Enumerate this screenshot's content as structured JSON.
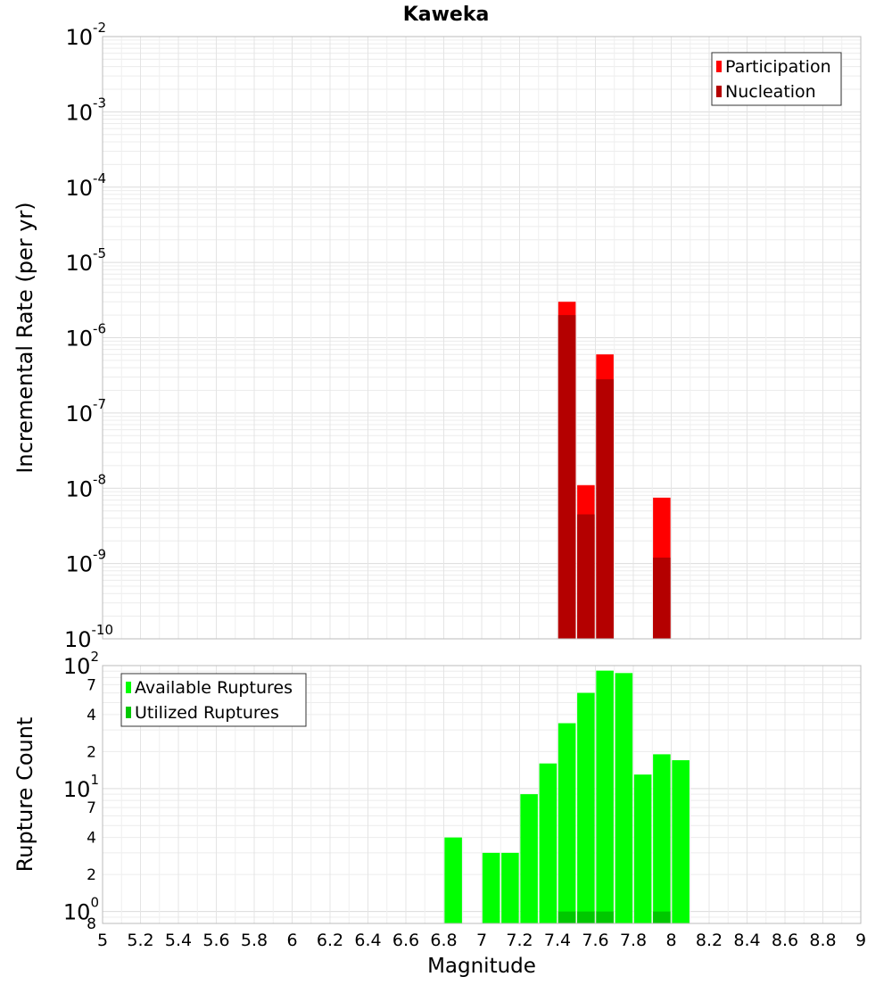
{
  "chart_data": {
    "type": "bar",
    "title": "Kaweka",
    "xlabel": "Magnitude",
    "xlim": [
      5,
      9
    ],
    "x_ticks": [
      "5",
      "5.2",
      "5.4",
      "5.6",
      "5.8",
      "6",
      "6.2",
      "6.4",
      "6.6",
      "6.8",
      "7",
      "7.2",
      "7.4",
      "7.6",
      "7.8",
      "8",
      "8.2",
      "8.4",
      "8.6",
      "8.8",
      "9"
    ],
    "panels": [
      {
        "name": "rate",
        "ylabel": "Incremental Rate (per yr)",
        "yscale": "log",
        "ylim": [
          1e-10,
          0.01
        ],
        "y_ticks": [
          {
            "base": "10",
            "exp": "-10",
            "value": 1e-10
          },
          {
            "base": "10",
            "exp": "-9",
            "value": 1e-09
          },
          {
            "base": "10",
            "exp": "-8",
            "value": 1e-08
          },
          {
            "base": "10",
            "exp": "-7",
            "value": 1e-07
          },
          {
            "base": "10",
            "exp": "-6",
            "value": 1e-06
          },
          {
            "base": "10",
            "exp": "-5",
            "value": 1e-05
          },
          {
            "base": "10",
            "exp": "-4",
            "value": 0.0001
          },
          {
            "base": "10",
            "exp": "-3",
            "value": 0.001
          },
          {
            "base": "10",
            "exp": "-2",
            "value": 0.01
          }
        ],
        "legend": {
          "position": "top-right"
        },
        "series": [
          {
            "name": "Participation",
            "color": "#ff0000",
            "x": [
              7.45,
              7.55,
              7.65,
              7.95
            ],
            "values": [
              3e-06,
              1.1e-08,
              6e-07,
              7.5e-09
            ]
          },
          {
            "name": "Nucleation",
            "color": "#b40000",
            "x": [
              7.45,
              7.55,
              7.65,
              7.95
            ],
            "values": [
              2e-06,
              4.5e-09,
              2.8e-07,
              1.2e-09
            ]
          }
        ]
      },
      {
        "name": "count",
        "ylabel": "Rupture Count",
        "yscale": "log",
        "ylim": [
          0.8,
          100
        ],
        "y_ticks": [
          {
            "base": "10",
            "exp": "0",
            "value": 1
          },
          {
            "base": "10",
            "exp": "1",
            "value": 10
          },
          {
            "base": "10",
            "exp": "2",
            "value": 100
          }
        ],
        "y_minor_labels": [
          {
            "label": "8",
            "value": 0.8
          },
          {
            "label": "2",
            "value": 2
          },
          {
            "label": "4",
            "value": 4
          },
          {
            "label": "7",
            "value": 7
          },
          {
            "label": "2",
            "value": 20
          },
          {
            "label": "4",
            "value": 40
          },
          {
            "label": "7",
            "value": 70
          }
        ],
        "legend": {
          "position": "top-left"
        },
        "series": [
          {
            "name": "Available Ruptures",
            "color": "#00ff00",
            "x": [
              6.85,
              7.05,
              7.15,
              7.25,
              7.35,
              7.45,
              7.55,
              7.65,
              7.75,
              7.85,
              7.95,
              8.05
            ],
            "values": [
              4,
              3,
              3,
              9,
              16,
              34,
              60,
              91,
              87,
              13,
              19,
              17
            ]
          },
          {
            "name": "Utilized Ruptures",
            "color": "#00c800",
            "x": [
              7.45,
              7.55,
              7.65,
              7.95
            ],
            "values": [
              1,
              1,
              1,
              1
            ]
          }
        ]
      }
    ]
  }
}
